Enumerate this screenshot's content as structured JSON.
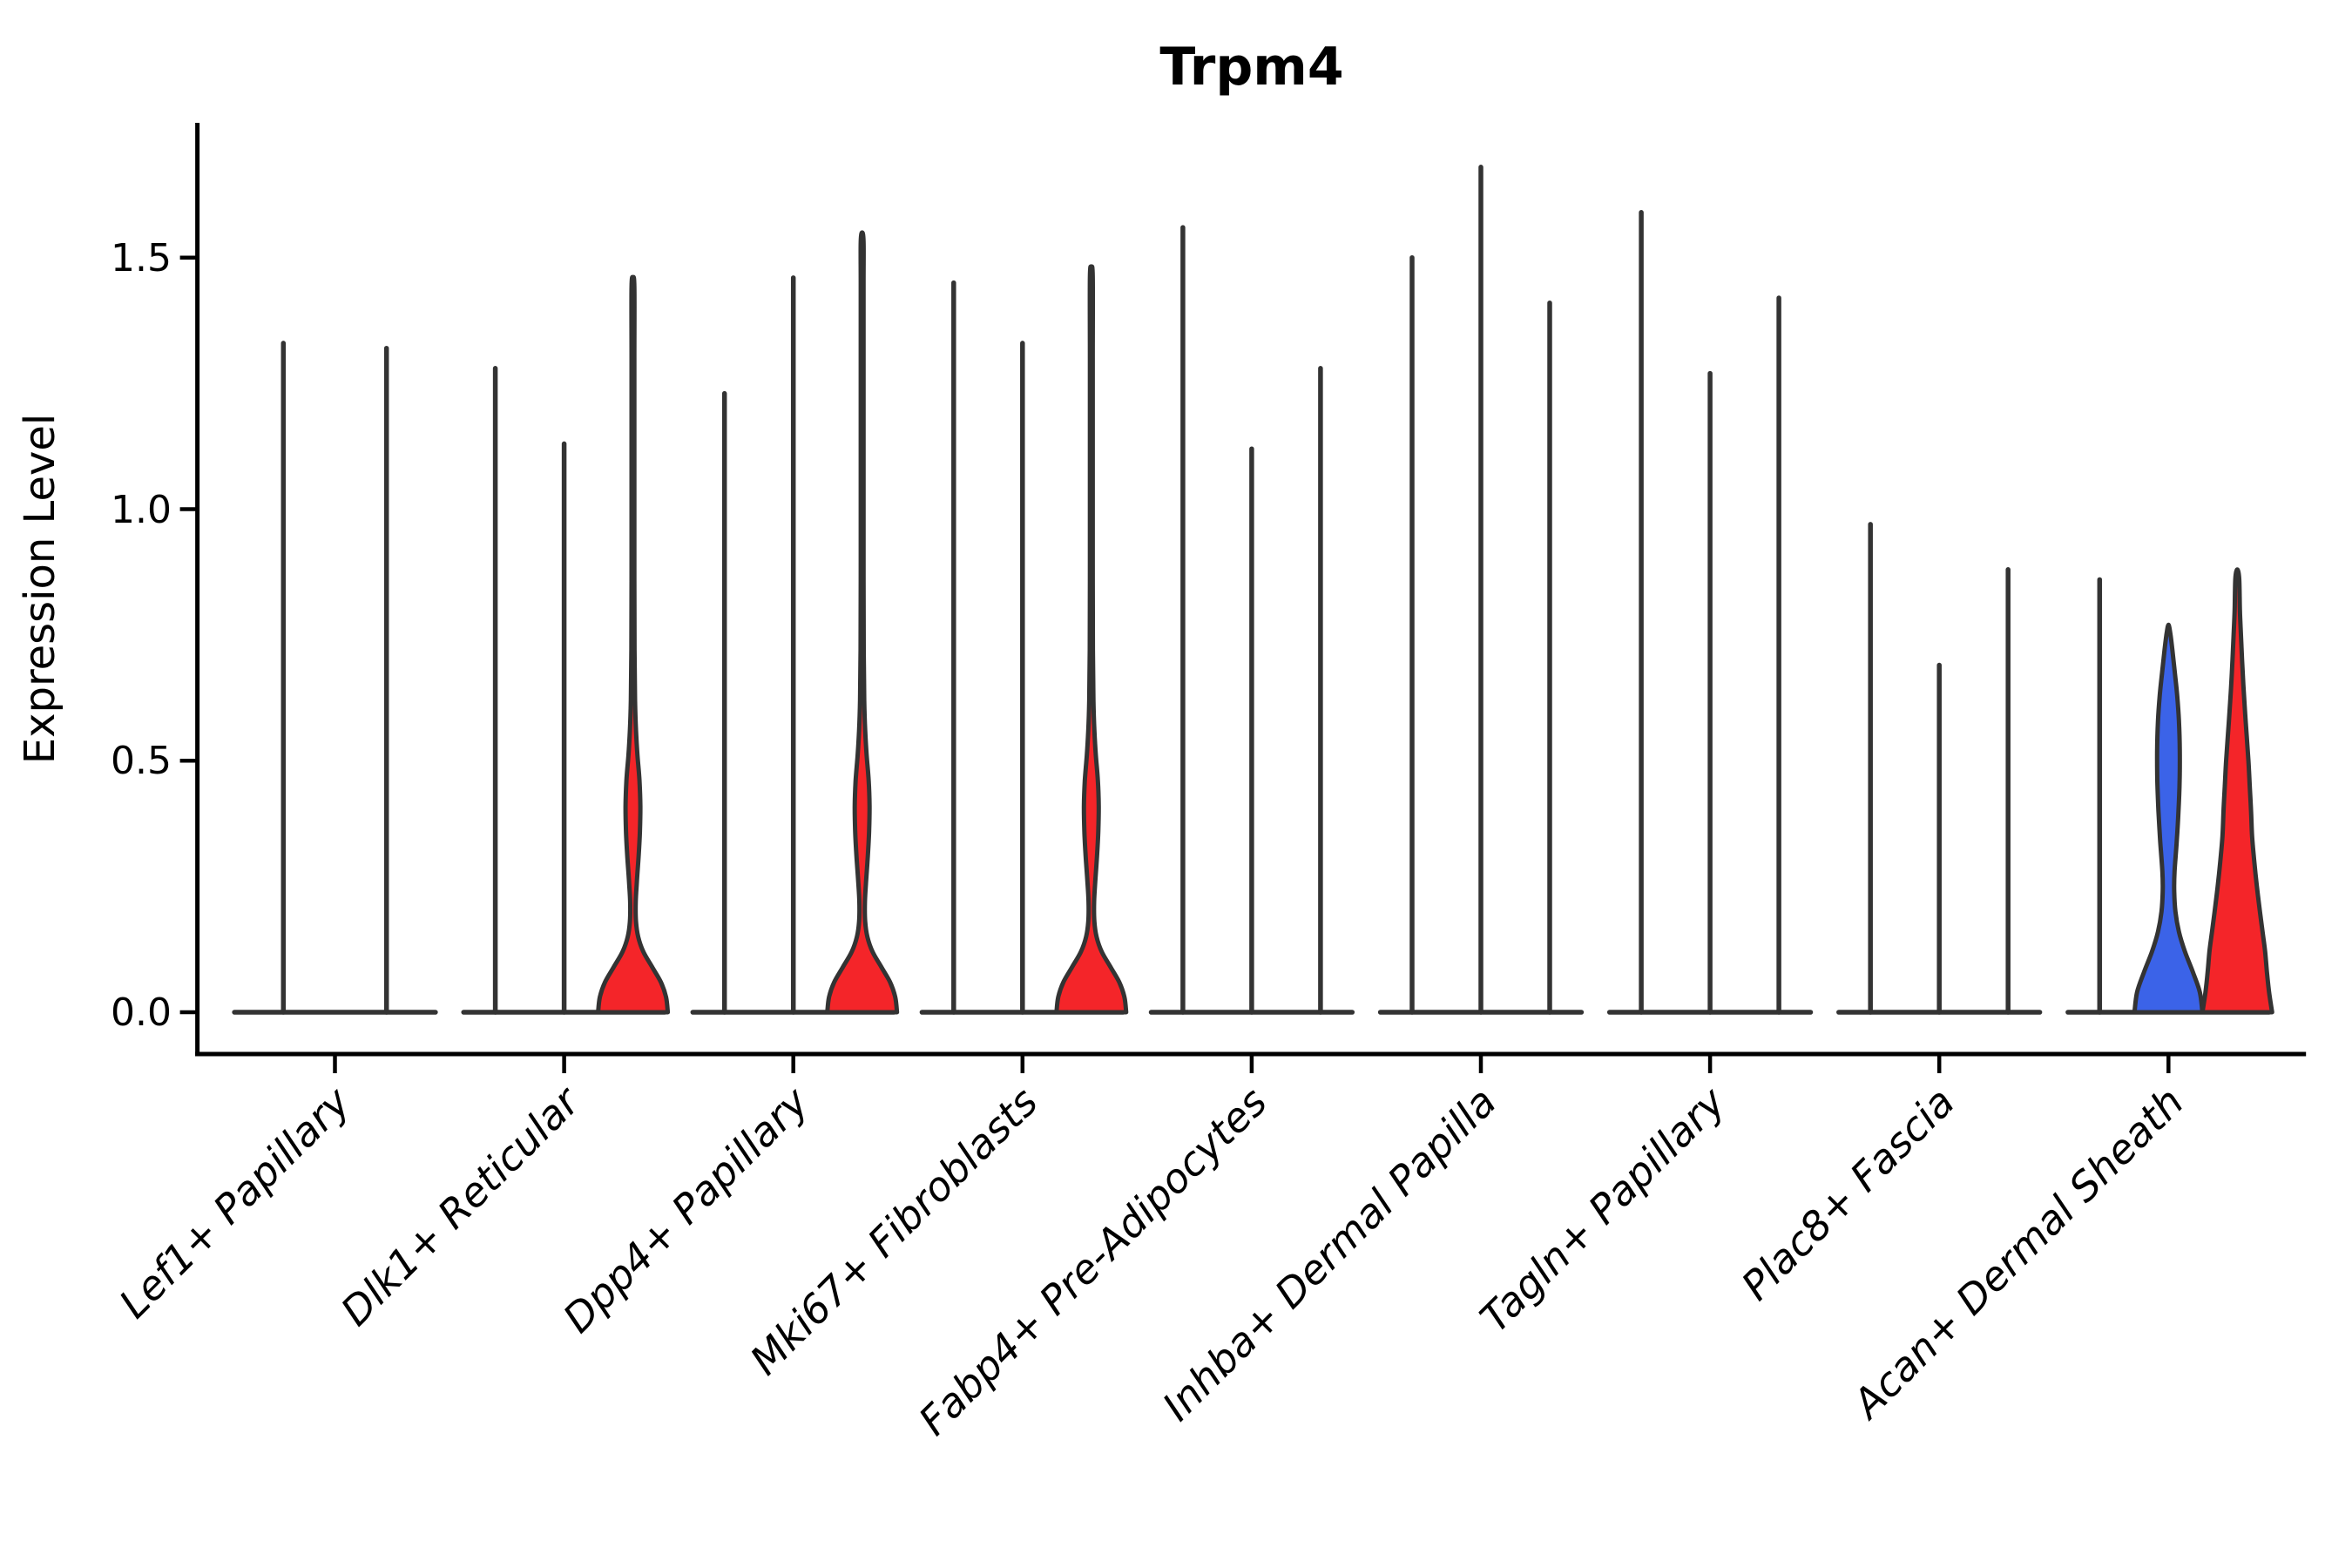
{
  "chart_data": {
    "type": "violin",
    "title": "Trpm4",
    "ylabel": "Expression Level",
    "ytick_labels": [
      "0.0",
      "0.5",
      "1.0",
      "1.5"
    ],
    "ytick_values": [
      0.0,
      0.5,
      1.0,
      1.5
    ],
    "ylim": [
      -0.08,
      1.77
    ],
    "grid": false,
    "legend": "none",
    "colors": {
      "outline": "#333333",
      "red_fill": "#F42529",
      "blue_fill": "#3B63E8",
      "axis": "#000000",
      "background": "#ffffff"
    },
    "categories": [
      "Lef1+ Papillary",
      "Dlk1+ Reticular",
      "Dpp4+ Papillary",
      "Mki67+ Fibroblasts",
      "Fabp4+ Pre-Adipocytes",
      "Inhba+ Dermal Papilla",
      "Tagln+ Papillary",
      "Plac8+ Fascia",
      "Acan+ Dermal Sheath"
    ],
    "groups": [
      {
        "category": "Lef1+ Papillary",
        "n_slots": 2,
        "violins": [
          {
            "slot": 1,
            "max_expression": 1.33,
            "shape": "spike",
            "fill": null
          },
          {
            "slot": 2,
            "max_expression": 1.32,
            "shape": "spike",
            "fill": null
          }
        ]
      },
      {
        "category": "Dlk1+ Reticular",
        "n_slots": 3,
        "violins": [
          {
            "slot": 1,
            "max_expression": 1.28,
            "shape": "spike",
            "fill": null
          },
          {
            "slot": 2,
            "max_expression": 1.13,
            "shape": "spike",
            "fill": null
          },
          {
            "slot": 3,
            "max_expression": 1.46,
            "shape": "red_bulged",
            "fill": "#F42529"
          }
        ]
      },
      {
        "category": "Dpp4+ Papillary",
        "n_slots": 3,
        "violins": [
          {
            "slot": 1,
            "max_expression": 1.23,
            "shape": "spike",
            "fill": null
          },
          {
            "slot": 2,
            "max_expression": 1.46,
            "shape": "spike",
            "fill": null
          },
          {
            "slot": 3,
            "max_expression": 1.55,
            "shape": "red_bulged",
            "fill": "#F42529"
          }
        ]
      },
      {
        "category": "Mki67+ Fibroblasts",
        "n_slots": 3,
        "violins": [
          {
            "slot": 1,
            "max_expression": 1.45,
            "shape": "spike",
            "fill": null
          },
          {
            "slot": 2,
            "max_expression": 1.33,
            "shape": "spike",
            "fill": null
          },
          {
            "slot": 3,
            "max_expression": 1.48,
            "shape": "red_bulged",
            "fill": "#F42529"
          }
        ]
      },
      {
        "category": "Fabp4+ Pre-Adipocytes",
        "n_slots": 3,
        "violins": [
          {
            "slot": 1,
            "max_expression": 1.56,
            "shape": "spike",
            "fill": null
          },
          {
            "slot": 2,
            "max_expression": 1.12,
            "shape": "spike",
            "fill": null
          },
          {
            "slot": 3,
            "max_expression": 1.28,
            "shape": "spike",
            "fill": null
          }
        ]
      },
      {
        "category": "Inhba+ Dermal Papilla",
        "n_slots": 3,
        "violins": [
          {
            "slot": 1,
            "max_expression": 1.5,
            "shape": "spike",
            "fill": null
          },
          {
            "slot": 2,
            "max_expression": 1.68,
            "shape": "spike",
            "fill": null
          },
          {
            "slot": 3,
            "max_expression": 1.41,
            "shape": "spike",
            "fill": null
          }
        ]
      },
      {
        "category": "Tagln+ Papillary",
        "n_slots": 3,
        "violins": [
          {
            "slot": 1,
            "max_expression": 1.59,
            "shape": "spike",
            "fill": null
          },
          {
            "slot": 2,
            "max_expression": 1.27,
            "shape": "spike",
            "fill": null
          },
          {
            "slot": 3,
            "max_expression": 1.42,
            "shape": "spike",
            "fill": null
          }
        ]
      },
      {
        "category": "Plac8+ Fascia",
        "n_slots": 3,
        "violins": [
          {
            "slot": 1,
            "max_expression": 0.97,
            "shape": "spike",
            "fill": null
          },
          {
            "slot": 2,
            "max_expression": 0.69,
            "shape": "spike",
            "fill": null
          },
          {
            "slot": 3,
            "max_expression": 0.88,
            "shape": "spike",
            "fill": null
          }
        ]
      },
      {
        "category": "Acan+ Dermal Sheath",
        "n_slots": 3,
        "violins": [
          {
            "slot": 1,
            "max_expression": 0.86,
            "shape": "spike",
            "fill": null
          },
          {
            "slot": 2,
            "max_expression": 0.77,
            "shape": "blue_mid",
            "fill": "#3B63E8"
          },
          {
            "slot": 3,
            "max_expression": 0.88,
            "shape": "red_tapered",
            "fill": "#F42529"
          }
        ]
      }
    ],
    "profiles": {
      "red_bulged": [
        [
          0,
          40
        ],
        [
          0.03,
          38
        ],
        [
          0.06,
          32
        ],
        [
          0.09,
          22
        ],
        [
          0.12,
          12
        ],
        [
          0.15,
          6
        ],
        [
          0.18,
          3.5
        ],
        [
          0.22,
          3.2
        ],
        [
          0.26,
          4.5
        ],
        [
          0.31,
          6.5
        ],
        [
          0.36,
          8
        ],
        [
          0.41,
          8.5
        ],
        [
          0.46,
          7.5
        ],
        [
          0.51,
          5.2
        ],
        [
          0.56,
          3.5
        ],
        [
          0.62,
          2.4
        ],
        [
          0.72,
          1.8
        ],
        [
          0.9,
          1.6
        ],
        [
          1.1,
          1.6
        ],
        [
          1.3,
          1.6
        ],
        [
          1.45,
          1.6
        ]
      ],
      "blue_mid": [
        [
          0,
          39
        ],
        [
          0.04,
          36
        ],
        [
          0.08,
          28
        ],
        [
          0.12,
          19
        ],
        [
          0.16,
          12
        ],
        [
          0.2,
          8
        ],
        [
          0.24,
          6.6
        ],
        [
          0.28,
          7
        ],
        [
          0.34,
          9.5
        ],
        [
          0.4,
          11.5
        ],
        [
          0.46,
          12.8
        ],
        [
          0.52,
          13
        ],
        [
          0.58,
          12
        ],
        [
          0.63,
          10
        ],
        [
          0.68,
          7
        ],
        [
          0.72,
          4.5
        ],
        [
          0.75,
          2.5
        ]
      ],
      "red_tapered": [
        [
          0,
          40
        ],
        [
          0.04,
          36.5
        ],
        [
          0.08,
          34
        ],
        [
          0.12,
          32
        ],
        [
          0.16,
          29
        ],
        [
          0.2,
          26
        ],
        [
          0.25,
          22.5
        ],
        [
          0.3,
          19.5
        ],
        [
          0.35,
          17
        ],
        [
          0.4,
          15.8
        ],
        [
          0.45,
          14.3
        ],
        [
          0.5,
          12.8
        ],
        [
          0.55,
          10.8
        ],
        [
          0.6,
          8.8
        ],
        [
          0.65,
          7
        ],
        [
          0.7,
          5.5
        ],
        [
          0.75,
          4.2
        ],
        [
          0.8,
          3
        ],
        [
          0.85,
          1.8
        ]
      ]
    }
  }
}
